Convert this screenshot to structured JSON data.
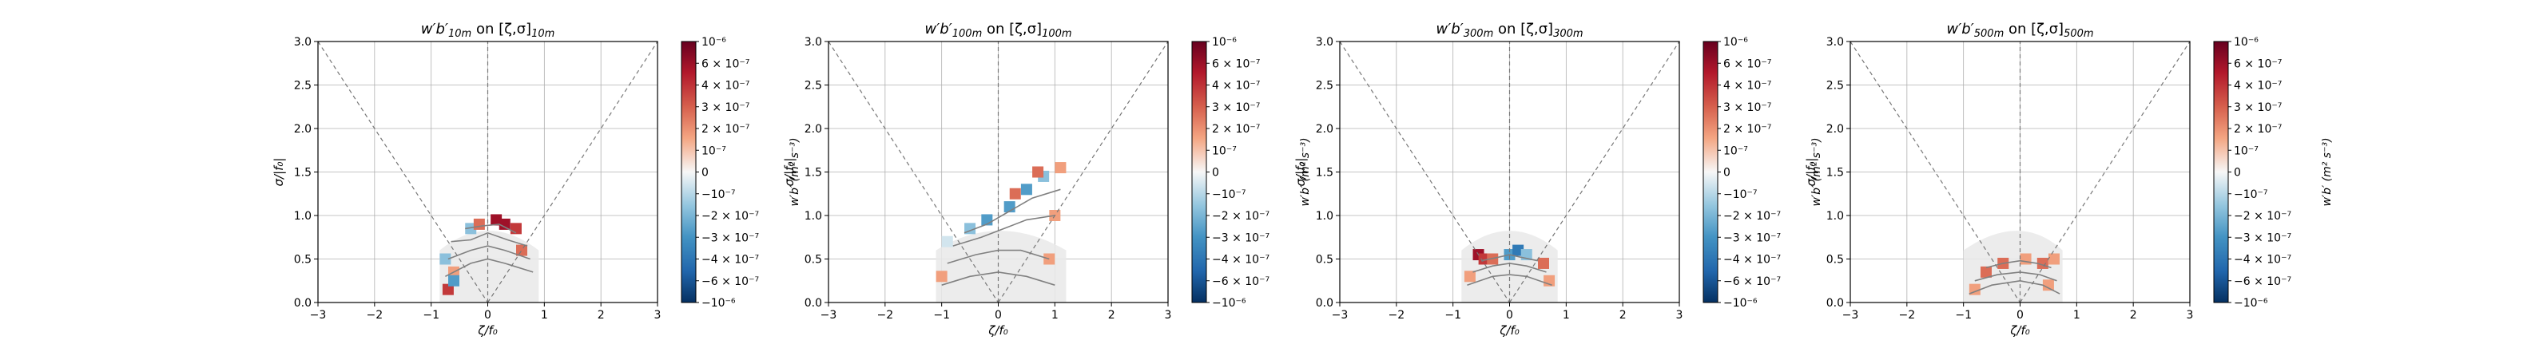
{
  "figure": {
    "shared": {
      "xlabel": "ζ/f₀",
      "ylabel": "σ/|f₀|",
      "cbar_label": "w′b′ (m² s⁻³)",
      "xlim": [
        -3,
        3
      ],
      "ylim": [
        0,
        3
      ],
      "xticks": [
        "−3",
        "−2",
        "−1",
        "0",
        "1",
        "2",
        "3"
      ],
      "yticks": [
        "0.0",
        "0.5",
        "1.0",
        "1.5",
        "2.0",
        "2.5",
        "3.0"
      ],
      "cbar_ticks": [
        "−10⁻⁶",
        "−6 × 10⁻⁷",
        "−4 × 10⁻⁷",
        "−3 × 10⁻⁷",
        "−2 × 10⁻⁷",
        "−10⁻⁷",
        "0",
        "10⁻⁷",
        "2 × 10⁻⁷",
        "3 × 10⁻⁷",
        "4 × 10⁻⁷",
        "6 × 10⁻⁷",
        "10⁻⁶"
      ],
      "cbar_tick_values": [
        -1e-06,
        -6e-07,
        -4e-07,
        -3e-07,
        -2e-07,
        -1e-07,
        0,
        1e-07,
        2e-07,
        3e-07,
        4e-07,
        6e-07,
        1e-06
      ],
      "colors": {
        "neg": "#2166ac",
        "pos": "#b2182b",
        "mid": "#f7f7f7",
        "grid": "#b0b0b0",
        "contour": "#808080"
      }
    }
  },
  "chart_data": [
    {
      "type": "heatmap",
      "title_main": "w′b′",
      "title_sub": "10m",
      "title_on": " on [ζ,σ]",
      "title_sub2": "10m",
      "xlabel": "ζ/f₀",
      "ylabel": "σ/|f₀|",
      "xlim": [
        -3,
        3
      ],
      "ylim": [
        0,
        3
      ],
      "grid": true,
      "reference_lines": [
        "σ = |ζ| (dashed)",
        "ζ = 0 (dashed)"
      ],
      "cells": [
        {
          "x": -0.7,
          "y": 0.15,
          "v": 3e-07
        },
        {
          "x": -0.6,
          "y": 0.35,
          "v": 1e-07
        },
        {
          "x": -0.3,
          "y": 0.85,
          "v": -2e-07
        },
        {
          "x": -0.15,
          "y": 0.9,
          "v": 2e-07
        },
        {
          "x": 0.15,
          "y": 0.95,
          "v": 4e-07
        },
        {
          "x": 0.3,
          "y": 0.9,
          "v": 5e-07
        },
        {
          "x": 0.5,
          "y": 0.85,
          "v": 3e-07
        },
        {
          "x": 0.6,
          "y": 0.6,
          "v": 2e-07
        },
        {
          "x": -0.75,
          "y": 0.5,
          "v": -2e-07
        },
        {
          "x": -0.6,
          "y": 0.25,
          "v": -3e-07
        }
      ],
      "domain_lower": {
        "xmin": -0.85,
        "xmax": 0.9
      },
      "contours": [
        {
          "x": [
            -0.75,
            -0.3,
            0,
            0.3,
            0.8
          ],
          "y": [
            0.3,
            0.45,
            0.5,
            0.45,
            0.35
          ]
        },
        {
          "x": [
            -0.7,
            -0.3,
            0,
            0.3,
            0.75
          ],
          "y": [
            0.5,
            0.6,
            0.65,
            0.6,
            0.5
          ]
        },
        {
          "x": [
            -0.65,
            -0.3,
            0,
            0.35,
            0.7
          ],
          "y": [
            0.7,
            0.72,
            0.8,
            0.72,
            0.65
          ]
        },
        {
          "x": [
            -0.4,
            -0.1,
            0.2,
            0.5
          ],
          "y": [
            0.85,
            0.88,
            0.9,
            0.8
          ]
        }
      ]
    },
    {
      "type": "heatmap",
      "title_main": "w′b′",
      "title_sub": "100m",
      "title_on": " on [ζ,σ]",
      "title_sub2": "100m",
      "xlabel": "ζ/f₀",
      "ylabel": "σ/|f₀|",
      "xlim": [
        -3,
        3
      ],
      "ylim": [
        0,
        3
      ],
      "grid": true,
      "reference_lines": [
        "σ = |ζ| (dashed)",
        "ζ = 0 (dashed)"
      ],
      "cells": [
        {
          "x": -0.9,
          "y": 0.7,
          "v": -1e-07
        },
        {
          "x": -0.5,
          "y": 0.85,
          "v": -2e-07
        },
        {
          "x": -0.2,
          "y": 0.95,
          "v": -3e-07
        },
        {
          "x": 0.2,
          "y": 1.1,
          "v": -3e-07
        },
        {
          "x": 0.5,
          "y": 1.3,
          "v": -3e-07
        },
        {
          "x": 0.8,
          "y": 1.45,
          "v": -2e-07
        },
        {
          "x": 0.3,
          "y": 1.25,
          "v": 2e-07
        },
        {
          "x": 0.7,
          "y": 1.5,
          "v": 2e-07
        },
        {
          "x": 1.1,
          "y": 1.55,
          "v": 1e-07
        },
        {
          "x": 1.0,
          "y": 1.0,
          "v": 1e-07
        },
        {
          "x": -1.0,
          "y": 0.3,
          "v": 1e-07
        },
        {
          "x": 0.9,
          "y": 0.5,
          "v": 1e-07
        }
      ],
      "domain_lower": {
        "xmin": -1.1,
        "xmax": 1.2
      },
      "contours": [
        {
          "x": [
            -1.0,
            -0.5,
            0,
            0.5,
            1.0
          ],
          "y": [
            0.2,
            0.3,
            0.35,
            0.3,
            0.2
          ]
        },
        {
          "x": [
            -0.9,
            -0.4,
            0,
            0.4,
            0.9
          ],
          "y": [
            0.45,
            0.55,
            0.6,
            0.6,
            0.5
          ]
        },
        {
          "x": [
            -0.8,
            -0.3,
            0.1,
            0.5,
            1.0
          ],
          "y": [
            0.65,
            0.75,
            0.85,
            0.95,
            1.0
          ]
        },
        {
          "x": [
            -0.6,
            -0.2,
            0.2,
            0.6,
            1.1
          ],
          "y": [
            0.8,
            0.9,
            1.05,
            1.2,
            1.3
          ]
        }
      ]
    },
    {
      "type": "heatmap",
      "title_main": "w′b′",
      "title_sub": "300m",
      "title_on": " on [ζ,σ]",
      "title_sub2": "300m",
      "xlabel": "ζ/f₀",
      "ylabel": "σ/|f₀|",
      "xlim": [
        -3,
        3
      ],
      "ylim": [
        0,
        3
      ],
      "grid": true,
      "reference_lines": [
        "σ = |ζ| (dashed)",
        "ζ = 0 (dashed)"
      ],
      "cells": [
        {
          "x": -0.55,
          "y": 0.55,
          "v": 5e-07
        },
        {
          "x": -0.45,
          "y": 0.5,
          "v": 3e-07
        },
        {
          "x": -0.3,
          "y": 0.5,
          "v": 2e-07
        },
        {
          "x": 0.0,
          "y": 0.55,
          "v": -3e-07
        },
        {
          "x": 0.15,
          "y": 0.6,
          "v": -4e-07
        },
        {
          "x": 0.3,
          "y": 0.55,
          "v": -2e-07
        },
        {
          "x": 0.6,
          "y": 0.45,
          "v": 2e-07
        },
        {
          "x": 0.7,
          "y": 0.25,
          "v": 1e-07
        },
        {
          "x": -0.7,
          "y": 0.3,
          "v": 1e-07
        }
      ],
      "domain_lower": {
        "xmin": -0.85,
        "xmax": 0.85
      },
      "contours": [
        {
          "x": [
            -0.75,
            -0.3,
            0,
            0.3,
            0.75
          ],
          "y": [
            0.2,
            0.3,
            0.32,
            0.3,
            0.2
          ]
        },
        {
          "x": [
            -0.65,
            -0.3,
            0,
            0.3,
            0.65
          ],
          "y": [
            0.35,
            0.42,
            0.45,
            0.42,
            0.35
          ]
        },
        {
          "x": [
            -0.5,
            -0.2,
            0,
            0.2,
            0.5
          ],
          "y": [
            0.48,
            0.52,
            0.55,
            0.52,
            0.48
          ]
        }
      ]
    },
    {
      "type": "heatmap",
      "title_main": "w′b′",
      "title_sub": "500m",
      "title_on": " on [ζ,σ]",
      "title_sub2": "500m",
      "xlabel": "ζ/f₀",
      "ylabel": "σ/|f₀|",
      "xlim": [
        -3,
        3
      ],
      "ylim": [
        0,
        3
      ],
      "grid": true,
      "reference_lines": [
        "σ = |ζ| (dashed)",
        "ζ = 0 (dashed)"
      ],
      "cells": [
        {
          "x": -0.6,
          "y": 0.35,
          "v": 2e-07
        },
        {
          "x": -0.3,
          "y": 0.45,
          "v": 2e-07
        },
        {
          "x": 0.1,
          "y": 0.5,
          "v": 1e-07
        },
        {
          "x": 0.4,
          "y": 0.45,
          "v": 2e-07
        },
        {
          "x": 0.6,
          "y": 0.5,
          "v": 1e-07
        },
        {
          "x": -0.8,
          "y": 0.15,
          "v": 1e-07
        },
        {
          "x": 0.5,
          "y": 0.2,
          "v": 1e-07
        }
      ],
      "domain_lower": {
        "xmin": -1.0,
        "xmax": 0.75
      },
      "contours": [
        {
          "x": [
            -0.9,
            -0.5,
            0,
            0.4,
            0.7
          ],
          "y": [
            0.1,
            0.2,
            0.25,
            0.2,
            0.1
          ]
        },
        {
          "x": [
            -0.8,
            -0.4,
            0,
            0.35,
            0.65
          ],
          "y": [
            0.25,
            0.32,
            0.35,
            0.32,
            0.25
          ]
        },
        {
          "x": [
            -0.6,
            -0.3,
            0,
            0.3,
            0.55
          ],
          "y": [
            0.4,
            0.45,
            0.48,
            0.45,
            0.4
          ]
        }
      ]
    }
  ]
}
